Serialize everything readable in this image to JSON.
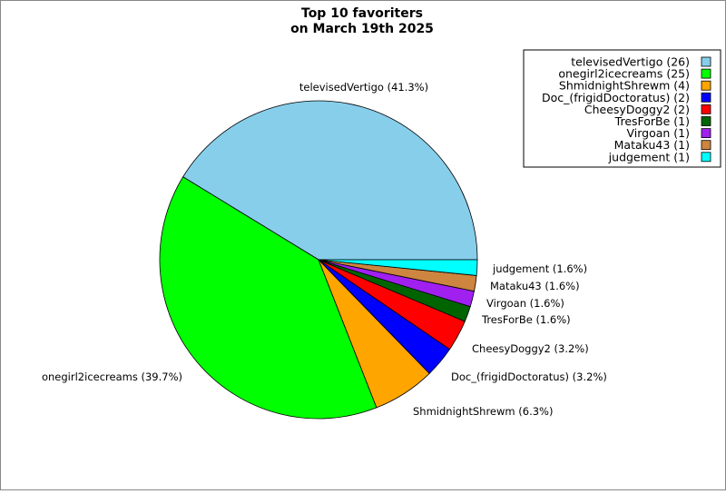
{
  "chart_data": {
    "type": "pie",
    "title": "Top 10 favoriters",
    "subtitle": "on March 19th 2025",
    "legend_position": "top-right",
    "slices": [
      {
        "name": "televisedVertigo",
        "value": 26,
        "percent_label": "televisedVertigo (41.3%)",
        "legend_label": "televisedVertigo (26)",
        "color": "#87ceeb"
      },
      {
        "name": "onegirl2icecreams",
        "value": 25,
        "percent_label": "onegirl2icecreams (39.7%)",
        "legend_label": "onegirl2icecreams (25)",
        "color": "#00ff00"
      },
      {
        "name": "ShmidnightShrewm",
        "value": 4,
        "percent_label": "ShmidnightShrewm (6.3%)",
        "legend_label": "ShmidnightShrewm (4)",
        "color": "#ffa500"
      },
      {
        "name": "Doc_(frigidDoctoratus)",
        "value": 2,
        "percent_label": "Doc_(frigidDoctoratus) (3.2%)",
        "legend_label": "Doc_(frigidDoctoratus) (2)",
        "color": "#0000ff"
      },
      {
        "name": "CheesyDoggy2",
        "value": 2,
        "percent_label": "CheesyDoggy2 (3.2%)",
        "legend_label": "CheesyDoggy2 (2)",
        "color": "#ff0000"
      },
      {
        "name": "TresForBe",
        "value": 1,
        "percent_label": "TresForBe (1.6%)",
        "legend_label": "TresForBe (1)",
        "color": "#006400"
      },
      {
        "name": "Virgoan",
        "value": 1,
        "percent_label": "Virgoan (1.6%)",
        "legend_label": "Virgoan (1)",
        "color": "#a020f0"
      },
      {
        "name": "Mataku43",
        "value": 1,
        "percent_label": "Mataku43 (1.6%)",
        "legend_label": "Mataku43 (1)",
        "color": "#cd853f"
      },
      {
        "name": "judgement",
        "value": 1,
        "percent_label": "judgement (1.6%)",
        "legend_label": "judgement (1)",
        "color": "#00ffff"
      }
    ]
  }
}
